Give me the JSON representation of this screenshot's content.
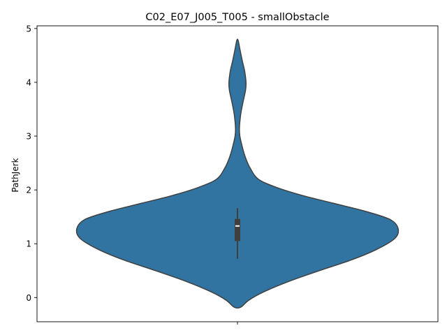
{
  "chart_data": {
    "type": "violin",
    "title": "C02_E07_J005_T005 - smallObstacle",
    "xlabel": "",
    "ylabel": "PathJerk",
    "ylim": [
      -0.45,
      5.05
    ],
    "yticks": [
      0,
      1,
      2,
      3,
      4,
      5
    ],
    "grid": false,
    "legend": "none",
    "color": "#3274a1",
    "outline_color": "#3f3f3f",
    "box": {
      "whisker_low": 0.72,
      "q1": 1.05,
      "median": 1.33,
      "q3": 1.46,
      "whisker_high": 1.66
    },
    "density_profile": [
      {
        "y": -0.18,
        "w": 0.02
      },
      {
        "y": -0.05,
        "w": 0.07
      },
      {
        "y": 0.1,
        "w": 0.16
      },
      {
        "y": 0.3,
        "w": 0.32
      },
      {
        "y": 0.5,
        "w": 0.51
      },
      {
        "y": 0.7,
        "w": 0.71
      },
      {
        "y": 0.9,
        "w": 0.87
      },
      {
        "y": 1.1,
        "w": 0.98
      },
      {
        "y": 1.28,
        "w": 1.0
      },
      {
        "y": 1.45,
        "w": 0.95
      },
      {
        "y": 1.6,
        "w": 0.8
      },
      {
        "y": 1.75,
        "w": 0.6
      },
      {
        "y": 1.9,
        "w": 0.4
      },
      {
        "y": 2.05,
        "w": 0.24
      },
      {
        "y": 2.2,
        "w": 0.13
      },
      {
        "y": 2.4,
        "w": 0.08
      },
      {
        "y": 2.6,
        "w": 0.05
      },
      {
        "y": 2.8,
        "w": 0.03
      },
      {
        "y": 3.0,
        "w": 0.015
      },
      {
        "y": 3.15,
        "w": 0.012
      },
      {
        "y": 3.4,
        "w": 0.02
      },
      {
        "y": 3.6,
        "w": 0.032
      },
      {
        "y": 3.85,
        "w": 0.05
      },
      {
        "y": 4.0,
        "w": 0.053
      },
      {
        "y": 4.2,
        "w": 0.045
      },
      {
        "y": 4.4,
        "w": 0.03
      },
      {
        "y": 4.6,
        "w": 0.016
      },
      {
        "y": 4.78,
        "w": 0.004
      }
    ]
  }
}
